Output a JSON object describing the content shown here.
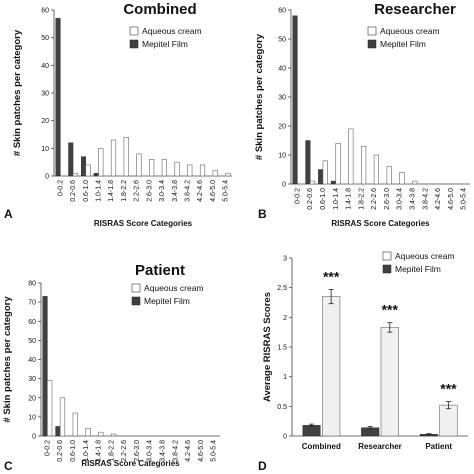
{
  "colors": {
    "aqueous": "#ffffff",
    "mepitel": "#404040",
    "aqueous_bar": "#f0f0f0"
  },
  "legend": {
    "aqueous": "Aqueous cream",
    "mepitel": "Mepitel Film"
  },
  "chart_data": [
    {
      "type": "bar",
      "panel_label": "A",
      "title": "Combined",
      "ylabel": "# Skin patches per category",
      "xlabel": "RISRAS Score Categories",
      "ylim": [
        0,
        60
      ],
      "yticks": [
        0,
        10,
        20,
        30,
        40,
        50,
        60
      ],
      "categories": [
        "0-0.2",
        "0.2-0.6",
        "0.6-1.0",
        "1.0-1.4",
        "1.4-1.8",
        "1.8-2.2",
        "2.2-2.6",
        "2.6-3.0",
        "3.0-3.4",
        "3.4-3.8",
        "3.8-4.2",
        "4.2-4.6",
        "4.6-5.0",
        "5.0-5.4"
      ],
      "series": [
        {
          "name": "Aqueous cream",
          "values": [
            0,
            1,
            4,
            10,
            13,
            14,
            8,
            6,
            6,
            5,
            4,
            4,
            2,
            1
          ]
        },
        {
          "name": "Mepitel Film",
          "values": [
            57,
            12,
            7,
            1,
            0,
            0,
            0,
            0,
            0,
            0,
            0,
            0,
            0,
            0
          ]
        }
      ]
    },
    {
      "type": "bar",
      "panel_label": "B",
      "title": "Researcher",
      "ylabel": "# Skin patches per category",
      "xlabel": "RISRAS Score Categories",
      "ylim": [
        0,
        60
      ],
      "yticks": [
        0,
        10,
        20,
        30,
        40,
        50,
        60
      ],
      "categories": [
        "0-0.2",
        "0.2-0.6",
        "0.6-1.0",
        "1.0-1.4",
        "1.4-1.8",
        "1.8-2.2",
        "2.2-2.6",
        "2.6-3.0",
        "3.0-3.4",
        "3.4-3.8",
        "3.8-4.2",
        "4.2-4.6",
        "4.6-5.0",
        "5.0-5.4"
      ],
      "series": [
        {
          "name": "Aqueous cream",
          "values": [
            0,
            1,
            8,
            14,
            19,
            13,
            10,
            6,
            4,
            1,
            0,
            0,
            0,
            0
          ]
        },
        {
          "name": "Mepitel Film",
          "values": [
            58,
            15,
            5,
            1,
            0,
            0,
            0,
            0,
            0,
            0,
            0,
            0,
            0,
            0
          ]
        }
      ]
    },
    {
      "type": "bar",
      "panel_label": "C",
      "title": "Patient",
      "ylabel": "# Skin patches per category",
      "xlabel": "RISRAS Score Categories",
      "ylim": [
        0,
        80
      ],
      "yticks": [
        0,
        10,
        20,
        30,
        40,
        50,
        60,
        70,
        80
      ],
      "categories": [
        "0-0.2",
        "0.2-0.6",
        "0.6-1.0",
        "1.0-1.4",
        "1.4-1.8",
        "1.8-2.2",
        "2.2-2.6",
        "2.6-3.0",
        "3.0-3.4",
        "3.4-3.8",
        "3.8-4.2",
        "4.2-4.6",
        "4.6-5.0",
        "5.0-5.4"
      ],
      "series": [
        {
          "name": "Aqueous cream",
          "values": [
            29,
            20,
            12,
            4,
            2,
            1,
            0,
            0,
            0,
            0,
            0,
            0,
            0,
            0
          ]
        },
        {
          "name": "Mepitel Film",
          "values": [
            73,
            5,
            0,
            0,
            0,
            0,
            0,
            0,
            0,
            0,
            0,
            0,
            0,
            0
          ]
        }
      ]
    },
    {
      "type": "bar",
      "panel_label": "D",
      "title": "",
      "ylabel": "Average RISRAS Scores",
      "xlabel": "",
      "ylim": [
        0,
        3
      ],
      "yticks": [
        "0",
        "0.5",
        "1",
        "1.5",
        "2",
        "2.5",
        "3"
      ],
      "categories": [
        "Combined",
        "Researcher",
        "Patient"
      ],
      "significance": [
        "***",
        "***",
        "***"
      ],
      "series": [
        {
          "name": "Aqueous cream",
          "values": [
            2.35,
            1.83,
            0.52
          ],
          "errors": [
            0.12,
            0.08,
            0.06
          ]
        },
        {
          "name": "Mepitel Film",
          "values": [
            0.18,
            0.14,
            0.03
          ],
          "errors": [
            0.02,
            0.02,
            0.01
          ]
        }
      ]
    }
  ]
}
